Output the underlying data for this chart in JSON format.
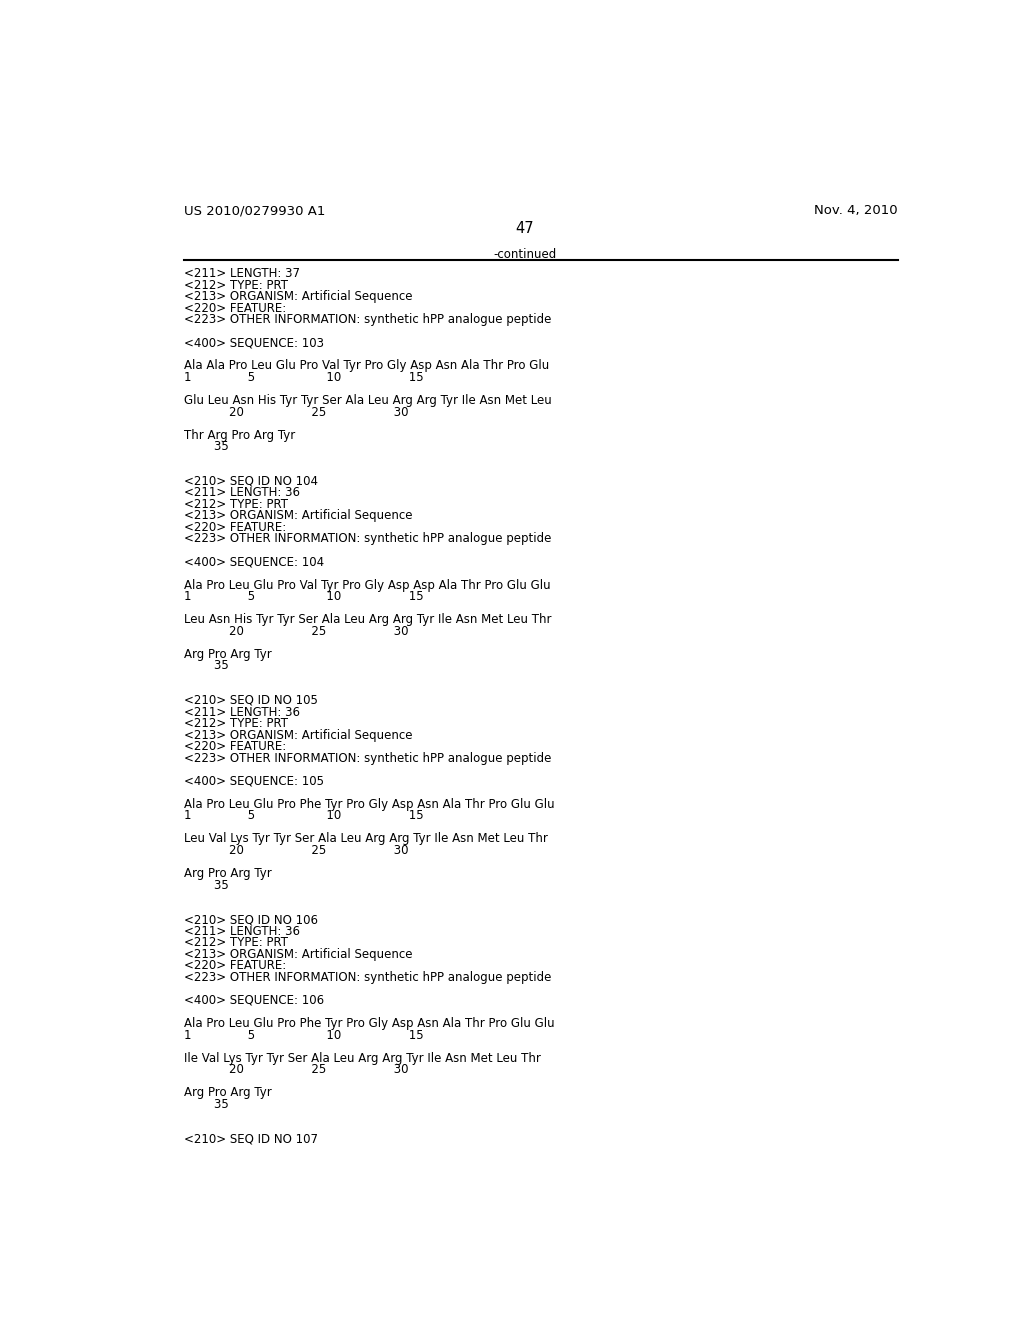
{
  "header_left": "US 2010/0279930 A1",
  "header_right": "Nov. 4, 2010",
  "page_number": "47",
  "continued_text": "-continued",
  "background_color": "#ffffff",
  "text_color": "#000000",
  "font_size": 8.5,
  "header_font_size": 9.5,
  "lines": [
    "<211> LENGTH: 37",
    "<212> TYPE: PRT",
    "<213> ORGANISM: Artificial Sequence",
    "<220> FEATURE:",
    "<223> OTHER INFORMATION: synthetic hPP analogue peptide",
    "",
    "<400> SEQUENCE: 103",
    "",
    "Ala Ala Pro Leu Glu Pro Val Tyr Pro Gly Asp Asn Ala Thr Pro Glu",
    "1               5                   10                  15",
    "",
    "Glu Leu Asn His Tyr Tyr Ser Ala Leu Arg Arg Tyr Ile Asn Met Leu",
    "            20                  25                  30",
    "",
    "Thr Arg Pro Arg Tyr",
    "        35",
    "",
    "",
    "<210> SEQ ID NO 104",
    "<211> LENGTH: 36",
    "<212> TYPE: PRT",
    "<213> ORGANISM: Artificial Sequence",
    "<220> FEATURE:",
    "<223> OTHER INFORMATION: synthetic hPP analogue peptide",
    "",
    "<400> SEQUENCE: 104",
    "",
    "Ala Pro Leu Glu Pro Val Tyr Pro Gly Asp Asp Ala Thr Pro Glu Glu",
    "1               5                   10                  15",
    "",
    "Leu Asn His Tyr Tyr Ser Ala Leu Arg Arg Tyr Ile Asn Met Leu Thr",
    "            20                  25                  30",
    "",
    "Arg Pro Arg Tyr",
    "        35",
    "",
    "",
    "<210> SEQ ID NO 105",
    "<211> LENGTH: 36",
    "<212> TYPE: PRT",
    "<213> ORGANISM: Artificial Sequence",
    "<220> FEATURE:",
    "<223> OTHER INFORMATION: synthetic hPP analogue peptide",
    "",
    "<400> SEQUENCE: 105",
    "",
    "Ala Pro Leu Glu Pro Phe Tyr Pro Gly Asp Asn Ala Thr Pro Glu Glu",
    "1               5                   10                  15",
    "",
    "Leu Val Lys Tyr Tyr Ser Ala Leu Arg Arg Tyr Ile Asn Met Leu Thr",
    "            20                  25                  30",
    "",
    "Arg Pro Arg Tyr",
    "        35",
    "",
    "",
    "<210> SEQ ID NO 106",
    "<211> LENGTH: 36",
    "<212> TYPE: PRT",
    "<213> ORGANISM: Artificial Sequence",
    "<220> FEATURE:",
    "<223> OTHER INFORMATION: synthetic hPP analogue peptide",
    "",
    "<400> SEQUENCE: 106",
    "",
    "Ala Pro Leu Glu Pro Phe Tyr Pro Gly Asp Asn Ala Thr Pro Glu Glu",
    "1               5                   10                  15",
    "",
    "Ile Val Lys Tyr Tyr Ser Ala Leu Arg Arg Tyr Ile Asn Met Leu Thr",
    "            20                  25                  30",
    "",
    "Arg Pro Arg Tyr",
    "        35",
    "",
    "",
    "<210> SEQ ID NO 107"
  ]
}
